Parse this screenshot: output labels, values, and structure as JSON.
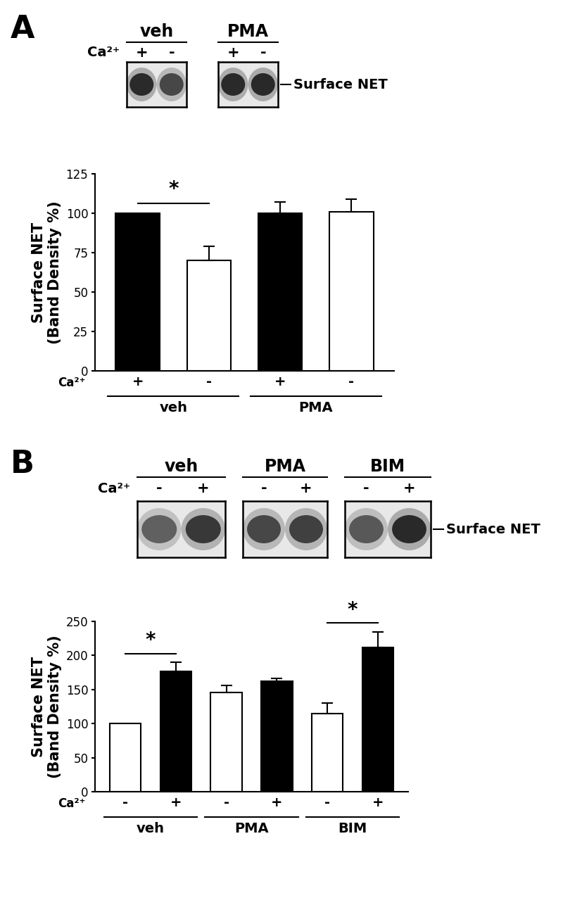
{
  "chart_data": [
    {
      "type": "bar",
      "panel_label": "A",
      "ylabel": "Surface NET\n(Band Density %)",
      "category_axis_label": "Ca²⁺",
      "categories": [
        "+",
        "-",
        "+",
        "-"
      ],
      "groups": [
        "veh",
        "veh",
        "PMA",
        "PMA"
      ],
      "values": [
        100,
        70,
        100,
        101
      ],
      "errors": [
        null,
        9,
        7,
        8
      ],
      "colors": [
        "#000000",
        "#ffffff",
        "#000000",
        "#ffffff"
      ],
      "ylim": [
        0,
        125
      ],
      "yticks": [
        0,
        25,
        50,
        75,
        100,
        125
      ],
      "significance": [
        {
          "between": [
            0,
            1
          ],
          "label": "*"
        }
      ],
      "band_label": "Surface NET"
    },
    {
      "type": "bar",
      "panel_label": "B",
      "ylabel": "Surface NET\n(Band Density %)",
      "category_axis_label": "Ca²⁺",
      "categories": [
        "-",
        "+",
        "-",
        "+",
        "-",
        "+"
      ],
      "groups": [
        "veh",
        "veh",
        "PMA",
        "PMA",
        "BIM",
        "BIM"
      ],
      "values": [
        100,
        177,
        146,
        162,
        115,
        212
      ],
      "errors": [
        null,
        13,
        10,
        4,
        15,
        23
      ],
      "colors": [
        "#ffffff",
        "#000000",
        "#ffffff",
        "#000000",
        "#ffffff",
        "#000000"
      ],
      "ylim": [
        0,
        250
      ],
      "yticks": [
        0,
        50,
        100,
        150,
        200,
        250
      ],
      "significance": [
        {
          "between": [
            0,
            1
          ],
          "label": "*"
        },
        {
          "between": [
            4,
            5
          ],
          "label": "*"
        }
      ],
      "band_label": "Surface NET"
    }
  ]
}
